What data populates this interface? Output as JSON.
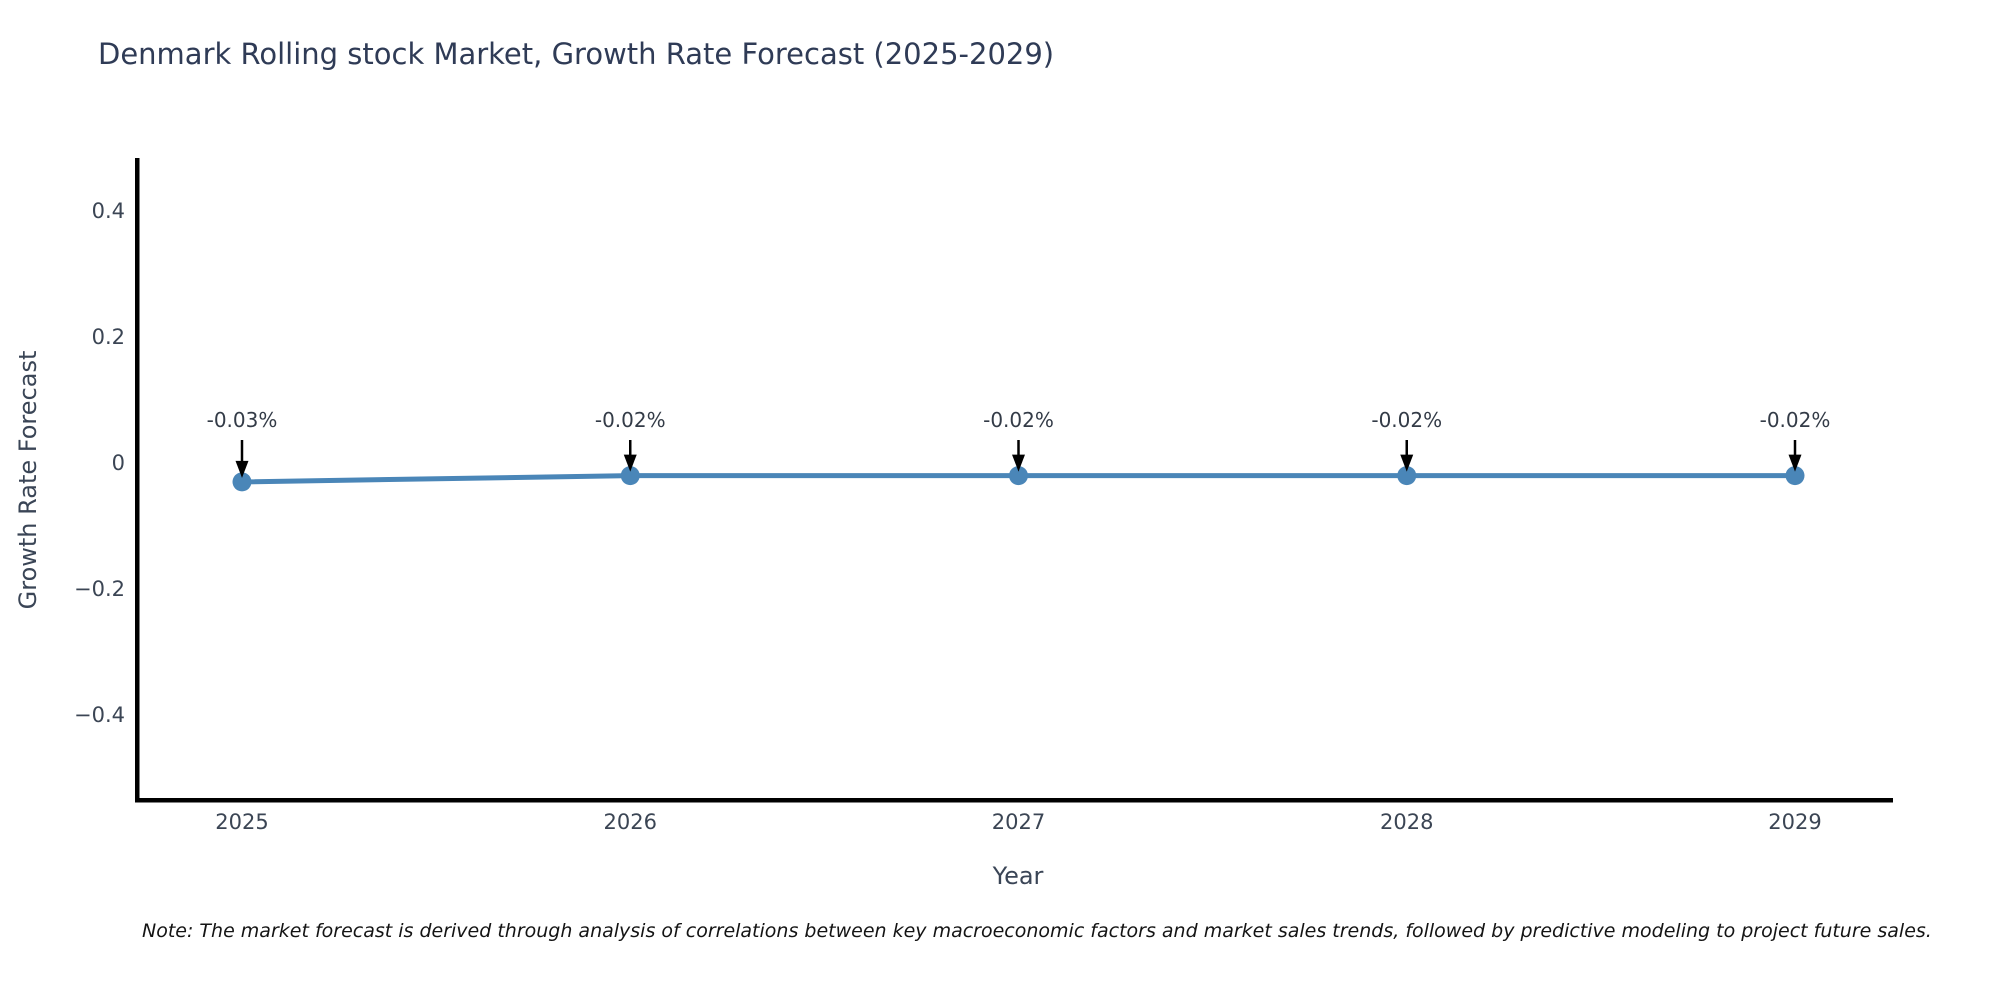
{
  "chart_data": {
    "type": "line",
    "title": "Denmark Rolling stock Market, Growth Rate Forecast (2025-2029)",
    "xlabel": "Year",
    "ylabel": "Growth Rate Forecast",
    "categories": [
      "2025",
      "2026",
      "2027",
      "2028",
      "2029"
    ],
    "values": [
      -0.03,
      -0.02,
      -0.02,
      -0.02,
      -0.02
    ],
    "point_labels": [
      "-0.03%",
      "-0.02%",
      "-0.02%",
      "-0.02%",
      "-0.02%"
    ],
    "yticks": {
      "values": [
        0.4,
        0.2,
        0,
        -0.2,
        -0.4
      ],
      "labels": [
        "0.4",
        "0.2",
        "0",
        "−0.2",
        "−0.4"
      ]
    },
    "ylim": [
      -0.54,
      0.48
    ],
    "grid": false,
    "legend": null,
    "line_color": "#4a86b8",
    "marker_color": "#4a86b8",
    "arrow_color": "#000000",
    "spine_color": "#000000",
    "note": "Note: The market forecast is derived through analysis of correlations between key macroeconomic factors and market sales trends, followed by predictive modeling to project future sales."
  }
}
